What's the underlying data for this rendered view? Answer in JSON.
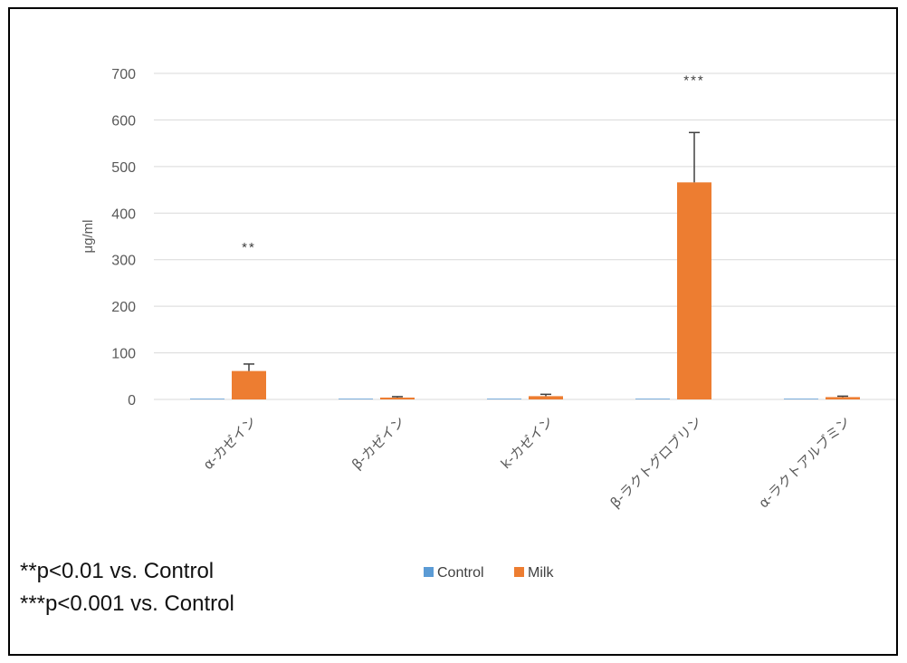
{
  "chart_data": {
    "type": "bar",
    "ylabel": "μg/ml",
    "ylim": [
      0,
      700
    ],
    "yticks": [
      0,
      100,
      200,
      300,
      400,
      500,
      600,
      700
    ],
    "grid": true,
    "legend_position": "bottom",
    "categories": [
      "α-カゼイン",
      "β-カゼイン",
      "k-カゼイン",
      "β-ラクトグロブリン",
      "α-ラクトアルブミン"
    ],
    "series": [
      {
        "name": "Control",
        "color": "#5B9BD5",
        "values": [
          0,
          0,
          0,
          0,
          0
        ],
        "errors": [
          0,
          0,
          0,
          0,
          0
        ]
      },
      {
        "name": "Milk",
        "color": "#ED7D31",
        "values": [
          61,
          4,
          7,
          466,
          5
        ],
        "errors": [
          15,
          2,
          4,
          107,
          2
        ]
      }
    ],
    "annotations": [
      "**",
      "",
      "",
      "***",
      ""
    ]
  },
  "notes": [
    "**p<0.01 vs. Control",
    "***p<0.001 vs. Control"
  ]
}
